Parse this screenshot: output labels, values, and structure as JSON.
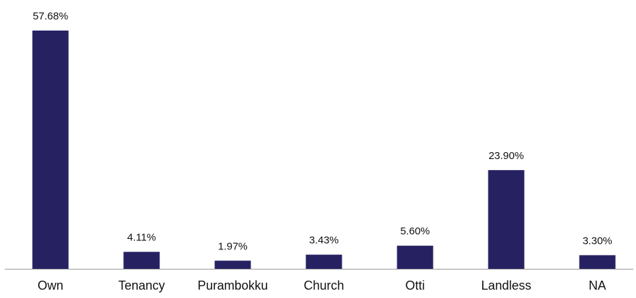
{
  "chart_data": {
    "type": "bar",
    "categories": [
      "Own",
      "Tenancy",
      "Purambokku",
      "Church",
      "Otti",
      "Landless",
      "NA"
    ],
    "values": [
      57.68,
      4.11,
      1.97,
      3.43,
      5.6,
      23.9,
      3.3
    ],
    "value_labels": [
      "57.68%",
      "4.11%",
      "1.97%",
      "3.43%",
      "5.60%",
      "23.90%",
      "3.30%"
    ],
    "color": "#262262"
  }
}
